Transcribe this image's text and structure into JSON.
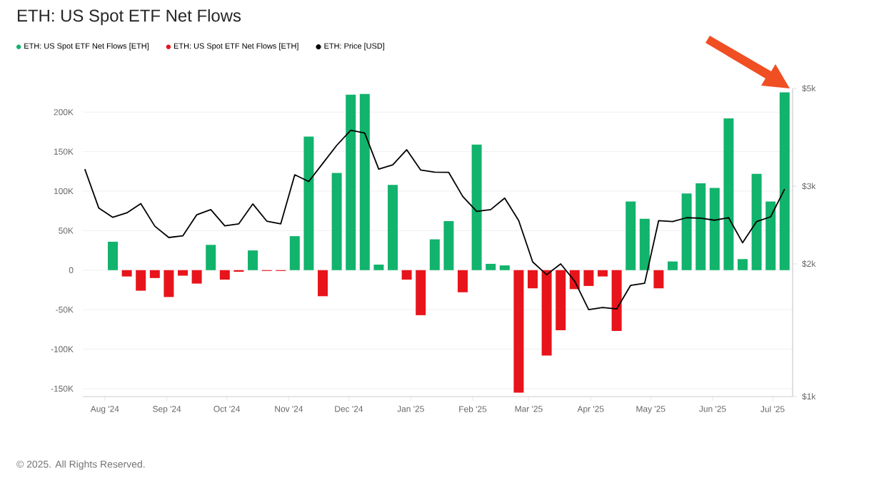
{
  "chart_data": {
    "type": "bar",
    "title": "ETH: US Spot ETF Net Flows",
    "annotations": [
      "© 2025. All Rights Reserved."
    ],
    "x": [
      "2024-08-05",
      "2024-08-12",
      "2024-08-19",
      "2024-08-26",
      "2024-09-02",
      "2024-09-09",
      "2024-09-16",
      "2024-09-23",
      "2024-09-30",
      "2024-10-07",
      "2024-10-14",
      "2024-10-21",
      "2024-10-28",
      "2024-11-04",
      "2024-11-11",
      "2024-11-18",
      "2024-11-25",
      "2024-12-02",
      "2024-12-09",
      "2024-12-16",
      "2024-12-23",
      "2024-12-30",
      "2025-01-06",
      "2025-01-13",
      "2025-01-20",
      "2025-01-27",
      "2025-02-03",
      "2025-02-10",
      "2025-02-17",
      "2025-02-24",
      "2025-03-03",
      "2025-03-10",
      "2025-03-17",
      "2025-03-24",
      "2025-03-31",
      "2025-04-07",
      "2025-04-14",
      "2025-04-21",
      "2025-04-28",
      "2025-05-05",
      "2025-05-12",
      "2025-05-19",
      "2025-05-26",
      "2025-06-02",
      "2025-06-09",
      "2025-06-16",
      "2025-06-23",
      "2025-06-30",
      "2025-07-07"
    ],
    "series": [
      {
        "name": "ETH: US Spot ETF Net Flows [ETH]",
        "color": "#12b36c",
        "values": [
          36000,
          null,
          null,
          null,
          null,
          null,
          null,
          32000,
          null,
          null,
          25000,
          null,
          null,
          43000,
          169000,
          null,
          123000,
          222000,
          223000,
          7000,
          108000,
          null,
          null,
          39000,
          62000,
          null,
          159000,
          8000,
          6000,
          null,
          null,
          null,
          null,
          null,
          null,
          null,
          null,
          87000,
          65000,
          null,
          11000,
          97000,
          110000,
          104000,
          192000,
          14000,
          122000,
          87000,
          225000
        ]
      },
      {
        "name": "ETH: US Spot ETF Net Flows [ETH]",
        "color": "#e8141b",
        "values": [
          null,
          -8000,
          -26000,
          -10000,
          -34000,
          -7000,
          -17000,
          null,
          -12000,
          -2000,
          null,
          -1000,
          -1000,
          null,
          null,
          -33000,
          null,
          null,
          null,
          null,
          null,
          -12000,
          -57000,
          null,
          null,
          -28000,
          null,
          null,
          null,
          -155000,
          -23000,
          -108000,
          -76000,
          -24000,
          -20000,
          -8000,
          -77000,
          null,
          null,
          -23000,
          null,
          null,
          null,
          null,
          null,
          null,
          null,
          null,
          null
        ]
      },
      {
        "name": "ETH: Price [USD]",
        "color": "#000000",
        "type": "line",
        "axis": "y2",
        "x": [
          "2024-07-22",
          "2024-07-29",
          "2024-08-05",
          "2024-08-12",
          "2024-08-19",
          "2024-08-26",
          "2024-09-02",
          "2024-09-09",
          "2024-09-16",
          "2024-09-23",
          "2024-09-30",
          "2024-10-07",
          "2024-10-14",
          "2024-10-21",
          "2024-10-28",
          "2024-11-04",
          "2024-11-11",
          "2024-11-18",
          "2024-11-25",
          "2024-12-02",
          "2024-12-09",
          "2024-12-16",
          "2024-12-23",
          "2024-12-30",
          "2025-01-06",
          "2025-01-13",
          "2025-01-20",
          "2025-01-27",
          "2025-02-03",
          "2025-02-10",
          "2025-02-17",
          "2025-02-24",
          "2025-03-03",
          "2025-03-10",
          "2025-03-17",
          "2025-03-24",
          "2025-03-31",
          "2025-04-07",
          "2025-04-14",
          "2025-04-21",
          "2025-04-28",
          "2025-05-05",
          "2025-05-12",
          "2025-05-19",
          "2025-05-26",
          "2025-06-02",
          "2025-06-09",
          "2025-06-16",
          "2025-06-23",
          "2025-06-30",
          "2025-07-07"
        ],
        "values": [
          3280,
          2675,
          2550,
          2610,
          2740,
          2435,
          2295,
          2315,
          2585,
          2655,
          2440,
          2465,
          2735,
          2500,
          2465,
          3185,
          3075,
          3380,
          3715,
          4020,
          3960,
          3280,
          3355,
          3630,
          3265,
          3230,
          3225,
          2845,
          2630,
          2655,
          2820,
          2507,
          2020,
          1890,
          2000,
          1828,
          1575,
          1592,
          1580,
          1788,
          1807,
          2507,
          2495,
          2545,
          2540,
          2512,
          2545,
          2233,
          2495,
          2557,
          2955
        ]
      }
    ],
    "xlim": [
      "2024-07-21",
      "2025-07-11"
    ],
    "xticks": [
      {
        "value": "2024-08-01",
        "label": "Aug '24"
      },
      {
        "value": "2024-09-01",
        "label": "Sep '24"
      },
      {
        "value": "2024-10-01",
        "label": "Oct '24"
      },
      {
        "value": "2024-11-01",
        "label": "Nov '24"
      },
      {
        "value": "2024-12-01",
        "label": "Dec '24"
      },
      {
        "value": "2025-01-01",
        "label": "Jan '25"
      },
      {
        "value": "2025-02-01",
        "label": "Feb '25"
      },
      {
        "value": "2025-03-01",
        "label": "Mar '25"
      },
      {
        "value": "2025-04-01",
        "label": "Apr '25"
      },
      {
        "value": "2025-05-01",
        "label": "May '25"
      },
      {
        "value": "2025-06-01",
        "label": "Jun '25"
      },
      {
        "value": "2025-07-01",
        "label": "Jul '25"
      }
    ],
    "ylim": [
      -160000,
      230000
    ],
    "yticks": [
      {
        "value": -150000,
        "label": "-150K"
      },
      {
        "value": -100000,
        "label": "-100K"
      },
      {
        "value": -50000,
        "label": "-50K"
      },
      0,
      {
        "value": 50000,
        "label": "50K"
      },
      {
        "value": 100000,
        "label": "100K"
      },
      {
        "value": 150000,
        "label": "150K"
      },
      {
        "value": 200000,
        "label": "200K"
      }
    ],
    "y2lim": [
      1000,
      5000
    ],
    "y2ticks": [
      {
        "value": 1000,
        "label": "$1k"
      },
      {
        "value": 2000,
        "label": "$2k"
      },
      {
        "value": 3000,
        "label": "$3k"
      },
      {
        "value": 5000,
        "label": "$5k"
      }
    ],
    "log": "y2",
    "grid": "y",
    "legend": "top left",
    "marker": "none"
  }
}
